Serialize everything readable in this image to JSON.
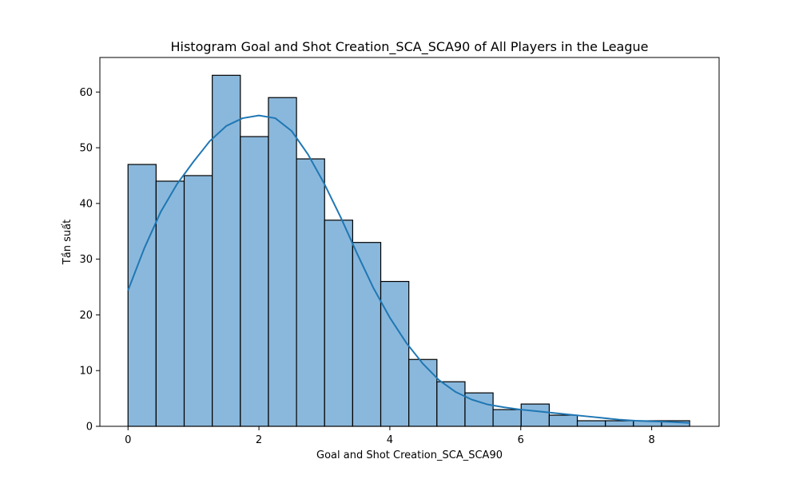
{
  "chart_data": {
    "type": "bar",
    "title": "Histogram Goal and Shot Creation_SCA_SCA90 of All Players in the League",
    "xlabel": "Goal and Shot Creation_SCA_SCA90",
    "ylabel": "Tần suất",
    "xlim": [
      -0.43,
      9.03
    ],
    "ylim": [
      0,
      66.2
    ],
    "x_ticks": [
      0,
      2,
      4,
      6,
      8
    ],
    "y_ticks": [
      0,
      10,
      20,
      30,
      40,
      50,
      60
    ],
    "bin_edges": [
      0,
      0.429,
      0.858,
      1.287,
      1.716,
      2.145,
      2.574,
      3.003,
      3.432,
      3.861,
      4.29,
      4.719,
      5.148,
      5.577,
      6.006,
      6.435,
      6.864,
      7.293,
      7.722,
      8.151,
      8.58
    ],
    "counts": [
      47,
      44,
      45,
      63,
      52,
      59,
      48,
      37,
      33,
      26,
      12,
      8,
      6,
      3,
      4,
      2,
      1,
      1,
      1,
      1
    ],
    "kde": {
      "x": [
        0,
        0.25,
        0.5,
        0.75,
        1.0,
        1.25,
        1.5,
        1.75,
        2.0,
        2.25,
        2.5,
        2.75,
        3.0,
        3.25,
        3.5,
        3.75,
        4.0,
        4.25,
        4.5,
        4.75,
        5.0,
        5.25,
        5.5,
        5.75,
        6.0,
        6.25,
        6.5,
        6.75,
        7.0,
        7.25,
        7.5,
        7.75,
        8.0,
        8.25,
        8.58
      ],
      "y": [
        24.4,
        32.0,
        38.5,
        43.5,
        47.5,
        51.2,
        53.9,
        55.3,
        55.8,
        55.3,
        53.0,
        48.8,
        43.5,
        37.5,
        31.0,
        24.8,
        19.5,
        15.0,
        11.3,
        8.3,
        6.2,
        4.8,
        3.9,
        3.4,
        3.0,
        2.7,
        2.4,
        2.1,
        1.8,
        1.5,
        1.2,
        1.0,
        0.9,
        0.8,
        0.6
      ]
    },
    "bar_color": "#8ab8dc",
    "bar_edge_color": "#000000",
    "line_color": "#1f77b4",
    "grid": false,
    "legend": "none"
  }
}
